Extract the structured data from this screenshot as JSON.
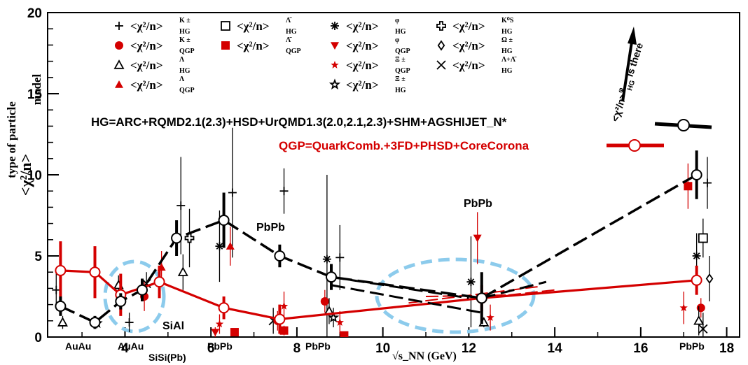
{
  "chart_data": {
    "type": "line",
    "xlabel": "√s_NN (GeV)",
    "ylabel": "<χ²/n>",
    "ylabel_sup": "type of particle",
    "ylabel_sub": "model",
    "xlim": [
      2.2,
      18.3
    ],
    "ylim": [
      0,
      20
    ],
    "x_ticks": [
      "4",
      "6",
      "8",
      "10",
      "12",
      "14",
      "16",
      "18"
    ],
    "y_ticks": [
      "0",
      "5",
      "10",
      "15",
      "20"
    ],
    "colors": {
      "hg": "#000000",
      "qgp": "#d40000",
      "ellipse": "#8ccbec"
    },
    "series": [
      {
        "name": "HG=ARC+RQMD2.1(2.3)+HSD+UrQMD1.3(2.0,2.1,2.3)+SHM+AGSHIJET_N*",
        "color": "#000000",
        "x": [
          2.5,
          3.3,
          3.9,
          4.4,
          5.2,
          6.3,
          7.6,
          8.8,
          12.3,
          17.3
        ],
        "y": [
          1.9,
          0.9,
          2.2,
          2.9,
          6.1,
          7.2,
          5.0,
          3.7,
          2.4,
          10.0
        ],
        "yerr": [
          0.6,
          0.4,
          0.5,
          0.7,
          1.1,
          1.7,
          0.7,
          0.8,
          1.6,
          1.5
        ]
      },
      {
        "name": "QGP=QuarkComb.+3FD+PHSD+CoreCorona",
        "color": "#d40000",
        "x": [
          2.5,
          3.3,
          3.9,
          4.8,
          6.3,
          7.6,
          12.3,
          17.3
        ],
        "y": [
          4.1,
          4.0,
          2.6,
          3.4,
          1.8,
          1.1,
          2.4,
          3.5
        ],
        "yerr": [
          1.8,
          1.6,
          1.3,
          1.0,
          0.7,
          0.9,
          0.8,
          0.9
        ]
      }
    ],
    "legend": [
      {
        "symbol": "plus",
        "color": "#000000",
        "main": "<χ²/n>",
        "sup": "K ±",
        "sub": "HG"
      },
      {
        "symbol": "open-square",
        "color": "#000000",
        "main": "<χ²/n>",
        "sup": "Λ̄",
        "sub": "HG"
      },
      {
        "symbol": "star-burst",
        "color": "#000000",
        "main": "<χ²/n>",
        "sup": "φ",
        "sub": "HG"
      },
      {
        "symbol": "open-cross",
        "color": "#000000",
        "main": "<χ²/n>",
        "sup": "K⁰S",
        "sub": "HG"
      },
      {
        "symbol": "filled-circle",
        "color": "#d40000",
        "main": "<χ²/n>",
        "sup": "K ±",
        "sub": "QGP"
      },
      {
        "symbol": "filled-square",
        "color": "#d40000",
        "main": "<χ²/n>",
        "sup": "Λ̄",
        "sub": "QGP"
      },
      {
        "symbol": "filled-tri-down",
        "color": "#d40000",
        "main": "<χ²/n>",
        "sup": "φ",
        "sub": "QGP"
      },
      {
        "symbol": "open-diamond",
        "color": "#000000",
        "main": "<χ²/n>",
        "sup": "Ω ±",
        "sub": "HG"
      },
      {
        "symbol": "open-tri-up",
        "color": "#000000",
        "main": "<χ²/n>",
        "sup": "Λ",
        "sub": "HG"
      },
      {
        "symbol": "filled-star",
        "color": "#d40000",
        "main": "<χ²/n>",
        "sup": "Ξ ±",
        "sub": "QGP"
      },
      {
        "symbol": "x-cross",
        "color": "#000000",
        "main": "<χ²/n>",
        "sup": "Λ+Λ̄",
        "sub": "HG"
      },
      {
        "symbol": "filled-tri-up",
        "color": "#d40000",
        "main": "<χ²/n>",
        "sup": "Λ",
        "sub": "QGP"
      },
      {
        "symbol": "open-star",
        "color": "#000000",
        "main": "<χ²/n>",
        "sup": "Ξ ±",
        "sub": "HG"
      }
    ],
    "annotations": {
      "hg_line": "HG=ARC+RQMD2.1(2.3)+HSD+UrQMD1.3(2.0,2.1,2.3)+SHM+AGSHIJET_N*",
      "qgp_line": "QGP=QuarkComb.+3FD+PHSD+CoreCorona",
      "phi_note_pre": "<χ²/n>",
      "phi_note_sup": "φ",
      "phi_note_sub": "HG",
      "phi_note_post": "is there",
      "pbpb_1": "PbPb",
      "pbpb_2": "PbPb",
      "sial": "SiAl",
      "auau_1": "AuAu",
      "auau_2": "AuAu",
      "sisi": "SiSi(Pb)",
      "pbpb_x1": "PbPb",
      "pbpb_x2": "PbPb",
      "pbpb_x3": "PbPb"
    },
    "particle_points": [
      {
        "sym": "plus",
        "c": "#000000",
        "x": 2.4,
        "y": 2.9,
        "e": 1.1
      },
      {
        "sym": "open-tri-up",
        "c": "#000000",
        "x": 2.55,
        "y": 0.9,
        "e": 0.4
      },
      {
        "sym": "open-star",
        "c": "#000000",
        "x": 3.35,
        "y": 0.85,
        "e": 0.3
      },
      {
        "sym": "open-tri-up",
        "c": "#000000",
        "x": 3.85,
        "y": 3.2,
        "e": 0.6
      },
      {
        "sym": "plus",
        "c": "#000000",
        "x": 4.1,
        "y": 0.9,
        "e": 0.6
      },
      {
        "sym": "x-cross",
        "c": "#000000",
        "x": 4.5,
        "y": 3.3,
        "e": 0.7
      },
      {
        "sym": "filled-circle",
        "c": "#d40000",
        "x": 4.45,
        "y": 2.5,
        "e": 0.9
      },
      {
        "sym": "filled-tri-up",
        "c": "#d40000",
        "x": 4.85,
        "y": 4.3,
        "e": 1.0
      },
      {
        "sym": "plus",
        "c": "#000000",
        "x": 5.3,
        "y": 8.1,
        "e": 3.0
      },
      {
        "sym": "open-tri-up",
        "c": "#000000",
        "x": 5.35,
        "y": 4.0,
        "e": 1.1
      },
      {
        "sym": "open-cross",
        "c": "#000000",
        "x": 5.5,
        "y": 6.1,
        "e": 1.8
      },
      {
        "sym": "star-burst",
        "c": "#000000",
        "x": 6.2,
        "y": 5.6,
        "e": 2.2
      },
      {
        "sym": "plus",
        "c": "#000000",
        "x": 6.5,
        "y": 8.9,
        "e": 4.0
      },
      {
        "sym": "filled-tri-up",
        "c": "#d40000",
        "x": 6.45,
        "y": 5.6,
        "e": 1.2
      },
      {
        "sym": "filled-tri-down",
        "c": "#d40000",
        "x": 6.1,
        "y": 0.3,
        "e": 0.3
      },
      {
        "sym": "filled-square",
        "c": "#d40000",
        "x": 6.55,
        "y": 0.3,
        "e": 0.2
      },
      {
        "sym": "filled-star",
        "c": "#d40000",
        "x": 6.2,
        "y": 0.8,
        "e": 0.6
      },
      {
        "sym": "plus",
        "c": "#000000",
        "x": 7.7,
        "y": 9.0,
        "e": 1.4
      },
      {
        "sym": "x-cross",
        "c": "#000000",
        "x": 7.45,
        "y": 1.0,
        "e": 0.8
      },
      {
        "sym": "filled-circle",
        "c": "#d40000",
        "x": 7.55,
        "y": 1.0,
        "e": 0.6
      },
      {
        "sym": "filled-star",
        "c": "#d40000",
        "x": 7.7,
        "y": 1.9,
        "e": 0.9
      },
      {
        "sym": "filled-square",
        "c": "#d40000",
        "x": 7.7,
        "y": 0.4,
        "e": 0.3
      },
      {
        "sym": "star-burst",
        "c": "#000000",
        "x": 8.7,
        "y": 4.8,
        "e": 5.2
      },
      {
        "sym": "plus",
        "c": "#000000",
        "x": 9.0,
        "y": 4.9,
        "e": 2.0
      },
      {
        "sym": "filled-circle",
        "c": "#d40000",
        "x": 8.65,
        "y": 2.2,
        "e": 0.7
      },
      {
        "sym": "open-tri-up",
        "c": "#000000",
        "x": 8.75,
        "y": 1.6,
        "e": 0.8
      },
      {
        "sym": "open-star",
        "c": "#000000",
        "x": 8.85,
        "y": 1.2,
        "e": 0.6
      },
      {
        "sym": "filled-star",
        "c": "#d40000",
        "x": 9.0,
        "y": 0.9,
        "e": 0.7
      },
      {
        "sym": "filled-square",
        "c": "#d40000",
        "x": 9.1,
        "y": 0.1,
        "e": 0.2
      },
      {
        "sym": "star-burst",
        "c": "#000000",
        "x": 12.05,
        "y": 3.4,
        "e": 2.8
      },
      {
        "sym": "filled-tri-down",
        "c": "#d40000",
        "x": 12.2,
        "y": 6.1,
        "e": 1.6
      },
      {
        "sym": "open-tri-up",
        "c": "#000000",
        "x": 12.35,
        "y": 0.9,
        "e": 0.3
      },
      {
        "sym": "filled-star",
        "c": "#d40000",
        "x": 12.5,
        "y": 1.2,
        "e": 0.8
      },
      {
        "sym": "filled-square",
        "c": "#d40000",
        "x": 17.1,
        "y": 9.3,
        "e": 1.4
      },
      {
        "sym": "plus",
        "c": "#000000",
        "x": 17.55,
        "y": 9.5,
        "e": 1.6
      },
      {
        "sym": "open-square",
        "c": "#000000",
        "x": 17.45,
        "y": 6.1,
        "e": 1.2
      },
      {
        "sym": "star-burst",
        "c": "#000000",
        "x": 17.3,
        "y": 5.0,
        "e": 1.4
      },
      {
        "sym": "open-diamond",
        "c": "#000000",
        "x": 17.6,
        "y": 3.6,
        "e": 1.4
      },
      {
        "sym": "filled-circle",
        "c": "#d40000",
        "x": 17.4,
        "y": 1.8,
        "e": 0.6
      },
      {
        "sym": "filled-star",
        "c": "#d40000",
        "x": 17.0,
        "y": 1.8,
        "e": 1.0
      },
      {
        "sym": "x-cross",
        "c": "#000000",
        "x": 17.45,
        "y": 0.5,
        "e": 1.0
      },
      {
        "sym": "open-tri-up",
        "c": "#000000",
        "x": 17.35,
        "y": 1.0,
        "e": 0.9
      }
    ]
  }
}
